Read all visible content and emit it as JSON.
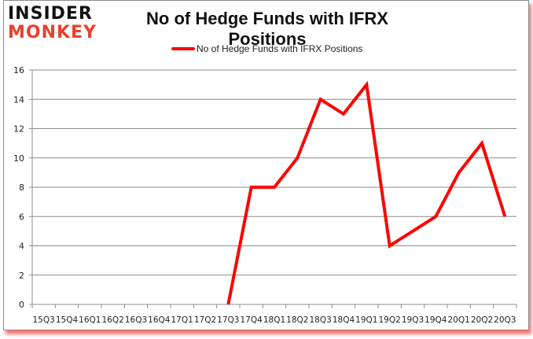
{
  "logo": {
    "line1": "INSIDER",
    "line2": "MONKEY"
  },
  "colors": {
    "series": "#ff0000",
    "grid": "#8c8c8c",
    "logo_accent": "#e8412c"
  },
  "chart_data": {
    "type": "line",
    "title": "No of Hedge Funds with IFRX Positions",
    "xlabel": "",
    "ylabel": "",
    "ylim": [
      0,
      16
    ],
    "yticks": [
      0,
      2,
      4,
      6,
      8,
      10,
      12,
      14,
      16
    ],
    "grid": true,
    "legend_position": "top",
    "categories": [
      "15Q3",
      "15Q4",
      "16Q1",
      "16Q2",
      "16Q3",
      "16Q4",
      "17Q1",
      "17Q2",
      "17Q3",
      "17Q4",
      "18Q1",
      "18Q2",
      "18Q3",
      "18Q4",
      "19Q1",
      "19Q2",
      "19Q3",
      "19Q4",
      "20Q1",
      "20Q2",
      "20Q3"
    ],
    "series": [
      {
        "name": "No of Hedge Funds with IFRX Positions",
        "values": [
          null,
          null,
          null,
          null,
          null,
          null,
          null,
          null,
          0,
          8,
          8,
          10,
          14,
          13,
          15,
          4,
          5,
          6,
          9,
          11,
          6
        ]
      }
    ]
  }
}
